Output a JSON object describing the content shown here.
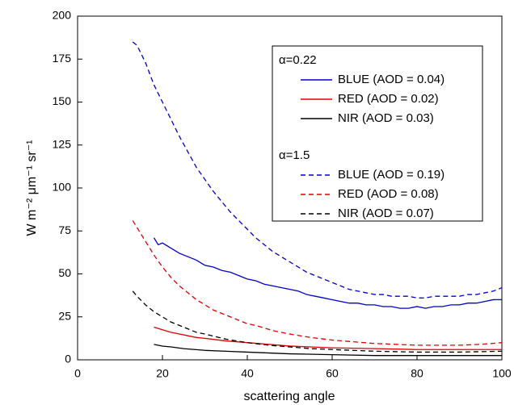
{
  "chart_data": {
    "type": "line",
    "xlabel": "scattering angle",
    "ylabel": "W m⁻² μm⁻¹ sr⁻¹",
    "xlim": [
      0,
      100
    ],
    "xticks": [
      0,
      20,
      40,
      60,
      80,
      100
    ],
    "ylim": [
      0,
      200
    ],
    "yticks": [
      0,
      25,
      50,
      75,
      100,
      125,
      150,
      175,
      200
    ],
    "legend_titles": [
      "α=0.22",
      "α=1.5"
    ],
    "series": [
      {
        "name": "BLUE (AOD = 0.04)",
        "color": "#0000cc",
        "dash": false,
        "x": [
          18,
          19,
          20,
          22,
          24,
          26,
          28,
          30,
          32,
          34,
          36,
          38,
          40,
          42,
          44,
          46,
          48,
          50,
          52,
          54,
          56,
          58,
          60,
          62,
          64,
          66,
          68,
          70,
          72,
          74,
          76,
          78,
          80,
          82,
          84,
          86,
          88,
          90,
          92,
          94,
          96,
          98,
          100
        ],
        "values": [
          71,
          67,
          68,
          65,
          62,
          60,
          58,
          55,
          54,
          52,
          51,
          49,
          47,
          46,
          44,
          43,
          42,
          41,
          40,
          38,
          37,
          36,
          35,
          34,
          33,
          33,
          32,
          32,
          31,
          31,
          30,
          30,
          31,
          30,
          31,
          31,
          32,
          32,
          33,
          33,
          34,
          35,
          35
        ]
      },
      {
        "name": "RED (AOD = 0.02)",
        "color": "#dd0000",
        "dash": false,
        "x": [
          18,
          20,
          22,
          24,
          26,
          28,
          30,
          35,
          40,
          45,
          50,
          55,
          60,
          70,
          80,
          90,
          100
        ],
        "values": [
          19,
          17.5,
          16,
          15,
          14,
          13,
          12.5,
          11,
          10,
          9,
          8,
          7.5,
          7,
          6.5,
          6,
          6,
          6
        ]
      },
      {
        "name": "NIR (AOD = 0.03)",
        "color": "#000000",
        "dash": false,
        "x": [
          18,
          20,
          22,
          25,
          30,
          35,
          40,
          50,
          60,
          70,
          80,
          90,
          100
        ],
        "values": [
          9,
          8,
          7.5,
          6.5,
          5.5,
          5,
          4.5,
          3.5,
          3,
          2.5,
          2.5,
          2.5,
          2.5
        ]
      },
      {
        "name": "BLUE (AOD = 0.19)",
        "color": "#0000cc",
        "dash": true,
        "x": [
          13,
          14,
          16,
          18,
          20,
          22,
          24,
          26,
          28,
          30,
          32,
          34,
          36,
          38,
          40,
          42,
          44,
          46,
          48,
          50,
          52,
          54,
          56,
          58,
          60,
          62,
          64,
          66,
          68,
          70,
          72,
          74,
          76,
          78,
          80,
          82,
          84,
          86,
          88,
          90,
          92,
          94,
          96,
          98,
          100
        ],
        "values": [
          185,
          183,
          173,
          160,
          150,
          140,
          130,
          121,
          112,
          105,
          98,
          92,
          86,
          81,
          76,
          71,
          67,
          63,
          60,
          57,
          54,
          51,
          49,
          47,
          45,
          43,
          41,
          40,
          39,
          38,
          38,
          37,
          37,
          37,
          36,
          36,
          37,
          37,
          37,
          37,
          38,
          38,
          39,
          40,
          42
        ]
      },
      {
        "name": "RED (AOD = 0.08)",
        "color": "#dd0000",
        "dash": true,
        "x": [
          13,
          14,
          16,
          18,
          20,
          22,
          24,
          26,
          28,
          30,
          32,
          34,
          36,
          38,
          40,
          42,
          44,
          46,
          48,
          50,
          55,
          60,
          65,
          70,
          75,
          80,
          85,
          90,
          95,
          100
        ],
        "values": [
          81,
          77,
          69,
          61,
          54,
          48,
          43,
          39,
          35,
          32,
          29,
          27,
          25,
          23,
          21,
          20,
          18.5,
          17,
          16,
          15,
          13,
          11.5,
          10.5,
          9.5,
          9,
          8.5,
          8.5,
          8.5,
          9,
          10
        ]
      },
      {
        "name": "NIR (AOD = 0.07)",
        "color": "#000000",
        "dash": true,
        "x": [
          13,
          14,
          16,
          18,
          20,
          22,
          24,
          26,
          28,
          30,
          35,
          40,
          45,
          50,
          55,
          60,
          70,
          80,
          90,
          100
        ],
        "values": [
          40,
          37,
          32,
          28,
          25,
          22,
          20,
          18,
          16,
          15,
          12,
          10,
          8.5,
          7.5,
          6.5,
          6,
          5,
          4.5,
          4.5,
          5
        ]
      }
    ]
  }
}
